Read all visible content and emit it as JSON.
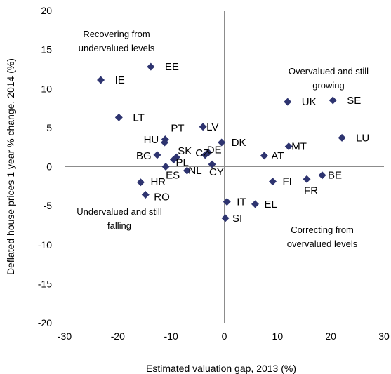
{
  "chart_data": {
    "type": "scatter",
    "xlabel": "Estimated valuation gap, 2013 (%)",
    "ylabel": "Deflated house prices 1 year % change, 2014 (%)",
    "xlim": [
      -30,
      30
    ],
    "ylim": [
      -20,
      20
    ],
    "x_ticks": [
      "-30",
      "-20",
      "-10",
      "0",
      "10",
      "20",
      "30"
    ],
    "y_ticks": [
      "20",
      "15",
      "10",
      "5",
      "0",
      "-5",
      "-10",
      "-15",
      "-20"
    ],
    "marker_color": "#2e3470",
    "points": [
      {
        "label": "EE",
        "x": -13.8,
        "y": 12.8
      },
      {
        "label": "IE",
        "x": -23.2,
        "y": 11.1
      },
      {
        "label": "LT",
        "x": -19.8,
        "y": 6.3
      },
      {
        "label": "LV",
        "x": -4.0,
        "y": 5.1
      },
      {
        "label": "PT",
        "x": -11.1,
        "y": 3.5
      },
      {
        "label": "HU",
        "x": -11.2,
        "y": 3.1
      },
      {
        "label": "DK",
        "x": -0.5,
        "y": 3.1
      },
      {
        "label": "CZ",
        "x": -3.6,
        "y": 1.5
      },
      {
        "label": "DE",
        "x": -3.0,
        "y": 1.8
      },
      {
        "label": "SK",
        "x": -9.0,
        "y": 1.2
      },
      {
        "label": "BG",
        "x": -12.6,
        "y": 1.5
      },
      {
        "label": "PL",
        "x": -9.5,
        "y": 0.9
      },
      {
        "label": "CY",
        "x": -2.3,
        "y": 0.3
      },
      {
        "label": "ES",
        "x": -11.0,
        "y": 0.0
      },
      {
        "label": "NL",
        "x": -7.0,
        "y": -0.5
      },
      {
        "label": "HR",
        "x": -15.7,
        "y": -2.0
      },
      {
        "label": "RO",
        "x": -14.8,
        "y": -3.6
      },
      {
        "label": "IT",
        "x": 0.5,
        "y": -4.5
      },
      {
        "label": "SI",
        "x": 0.2,
        "y": -6.6
      },
      {
        "label": "EL",
        "x": 5.8,
        "y": -4.8
      },
      {
        "label": "FI",
        "x": 9.1,
        "y": -1.9
      },
      {
        "label": "AT",
        "x": 7.5,
        "y": 1.4
      },
      {
        "label": "MT",
        "x": 12.1,
        "y": 2.6
      },
      {
        "label": "FR",
        "x": 15.5,
        "y": -1.6
      },
      {
        "label": "BE",
        "x": 18.4,
        "y": -1.1
      },
      {
        "label": "UK",
        "x": 11.9,
        "y": 8.3
      },
      {
        "label": "SE",
        "x": 20.4,
        "y": 8.5
      },
      {
        "label": "LU",
        "x": 22.1,
        "y": 3.7
      }
    ],
    "annotations": [
      {
        "lines": [
          "Recovering from",
          "undervalued levels"
        ]
      },
      {
        "lines": [
          "Overvalued and still",
          "growing"
        ]
      },
      {
        "lines": [
          "Undervalued and still",
          "falling"
        ]
      },
      {
        "lines": [
          "Correcting from",
          "overvalued levels"
        ]
      }
    ]
  }
}
